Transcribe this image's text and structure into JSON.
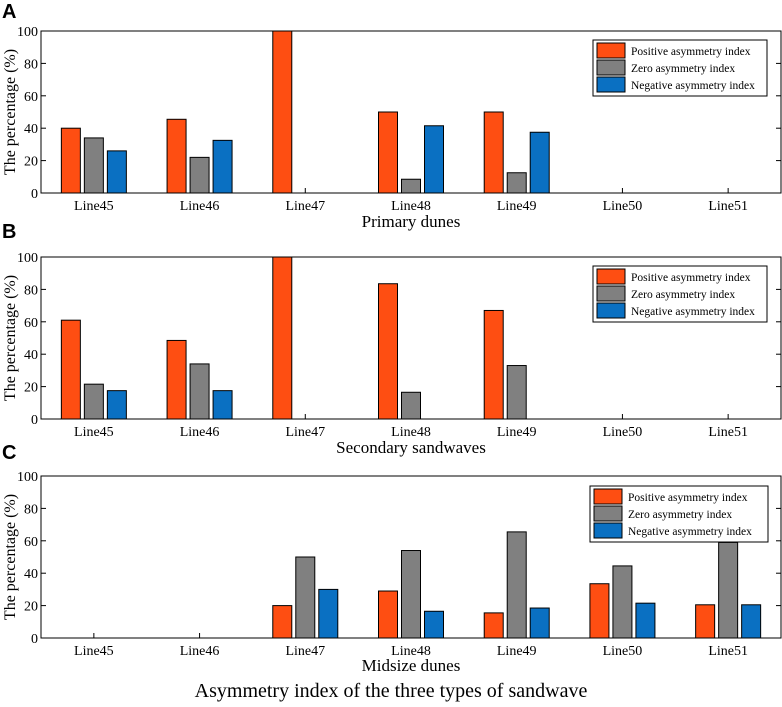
{
  "figure": {
    "caption": "Asymmetry index of  the three types of sandwave"
  },
  "chart_data": [
    {
      "panel_label": "A",
      "type": "bar",
      "xlabel": "Primary dunes",
      "ylabel": "The percentage (%)",
      "ylim": [
        0,
        100
      ],
      "yticks": [
        0,
        20,
        40,
        60,
        80,
        100
      ],
      "grid": false,
      "legend_position": "top-right",
      "categories": [
        "Line45",
        "Line46",
        "Line47",
        "Line48",
        "Line49",
        "Line50",
        "Line51"
      ],
      "series": [
        {
          "name": "Positive asymmetry index",
          "color": "#fe4e12",
          "values": [
            40,
            45.5,
            100,
            50,
            50,
            0,
            0
          ]
        },
        {
          "name": "Zero asymmetry index",
          "color": "#808080",
          "values": [
            34,
            22,
            0,
            8.5,
            12.5,
            0,
            0
          ]
        },
        {
          "name": "Negative asymmetry index",
          "color": "#0a70c2",
          "values": [
            26,
            32.5,
            0,
            41.5,
            37.5,
            0,
            0
          ]
        }
      ]
    },
    {
      "panel_label": "B",
      "type": "bar",
      "xlabel": "Secondary sandwaves",
      "ylabel": "The percentage (%)",
      "ylim": [
        0,
        100
      ],
      "yticks": [
        0,
        20,
        40,
        60,
        80,
        100
      ],
      "grid": false,
      "legend_position": "top-right",
      "categories": [
        "Line45",
        "Line46",
        "Line47",
        "Line48",
        "Line49",
        "Line50",
        "Line51"
      ],
      "series": [
        {
          "name": "Positive asymmetry index",
          "color": "#fe4e12",
          "values": [
            61,
            48.5,
            100,
            83.5,
            67,
            0,
            0
          ]
        },
        {
          "name": "Zero asymmetry index",
          "color": "#808080",
          "values": [
            21.5,
            34,
            0,
            16.5,
            33,
            0,
            0
          ]
        },
        {
          "name": "Negative asymmetry index",
          "color": "#0a70c2",
          "values": [
            17.5,
            17.5,
            0,
            0,
            0,
            0,
            0
          ]
        }
      ]
    },
    {
      "panel_label": "C",
      "type": "bar",
      "xlabel": "Midsize dunes",
      "ylabel": "The percentage (%)",
      "ylim": [
        0,
        100
      ],
      "yticks": [
        0,
        20,
        40,
        60,
        80,
        100
      ],
      "grid": false,
      "legend_position": "top-right",
      "categories": [
        "Line45",
        "Line46",
        "Line47",
        "Line48",
        "Line49",
        "Line50",
        "Line51"
      ],
      "series": [
        {
          "name": "Positive asymmetry index",
          "color": "#fe4e12",
          "values": [
            0,
            0,
            20,
            29,
            15.5,
            33.5,
            20.5
          ]
        },
        {
          "name": "Zero asymmetry index",
          "color": "#808080",
          "values": [
            0,
            0,
            50,
            54,
            65.5,
            44.5,
            59
          ]
        },
        {
          "name": "Negative asymmetry index",
          "color": "#0a70c2",
          "values": [
            0,
            0,
            30,
            16.5,
            18.5,
            21.5,
            20.5
          ]
        }
      ]
    }
  ]
}
